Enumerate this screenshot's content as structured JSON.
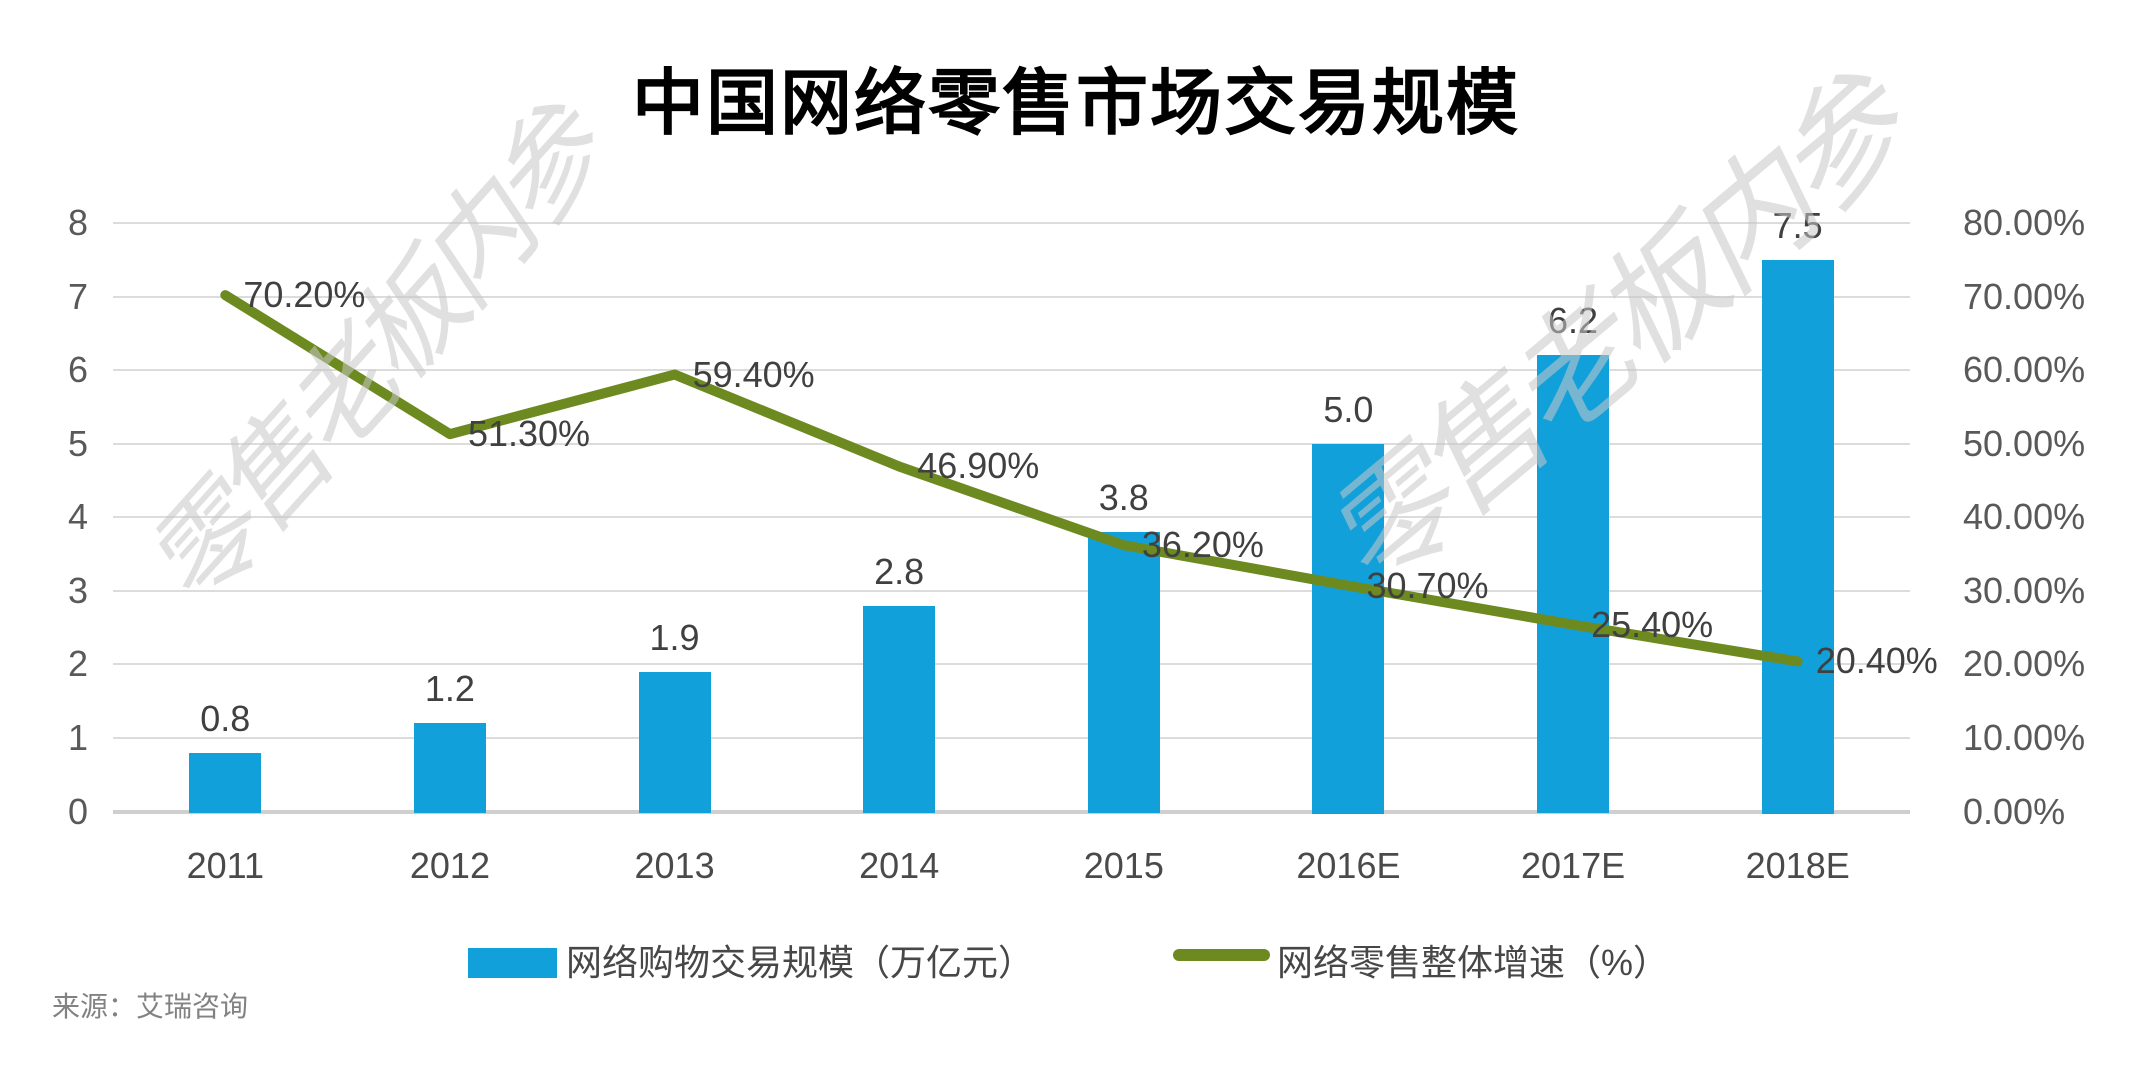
{
  "title": "中国网络零售市场交易规模",
  "watermark": {
    "text": "零售老板内参"
  },
  "source": "来源：艾瑞咨询",
  "legend": [
    {
      "label": "网络购物交易规模（万亿元）",
      "type": "bar"
    },
    {
      "label": "网络零售整体增速（%）",
      "type": "line"
    }
  ],
  "colors": {
    "bar": "#12A0DB",
    "line": "#6C8A1F",
    "grid": "#DCDCDC",
    "axis_text": "#595959",
    "data_label_text": "#404040",
    "watermark": "#C8C8C8",
    "source_text": "#828282"
  },
  "chart_data": {
    "type": "combo",
    "categories": [
      "2011",
      "2012",
      "2013",
      "2014",
      "2015",
      "2016E",
      "2017E",
      "2018E"
    ],
    "series": [
      {
        "name": "网络购物交易规模（万亿元）",
        "type": "bar",
        "axis": "left",
        "values": [
          0.8,
          1.2,
          1.9,
          2.8,
          3.8,
          5.0,
          6.2,
          7.5
        ],
        "labels": [
          "0.8",
          "1.2",
          "1.9",
          "2.8",
          "3.8",
          "5.0",
          "6.2",
          "7.5"
        ]
      },
      {
        "name": "网络零售整体增速（%）",
        "type": "line",
        "axis": "right",
        "values": [
          70.2,
          51.3,
          59.4,
          46.9,
          36.2,
          30.7,
          25.4,
          20.4
        ],
        "labels": [
          "70.20%",
          "51.30%",
          "59.40%",
          "46.90%",
          "36.20%",
          "30.70%",
          "25.40%",
          "20.40%"
        ]
      }
    ],
    "left_axis": {
      "min": 0,
      "max": 8,
      "step": 1,
      "ticks": [
        "8",
        "7",
        "6",
        "5",
        "4",
        "3",
        "2",
        "1",
        "0"
      ]
    },
    "right_axis": {
      "min": 0,
      "max": 80,
      "step": 10,
      "ticks": [
        "80.00%",
        "70.00%",
        "60.00%",
        "50.00%",
        "40.00%",
        "30.00%",
        "20.00%",
        "10.00%",
        "0.00%"
      ]
    },
    "grid": true,
    "legend_position": "bottom",
    "xlabel": "",
    "ylabel_left": "",
    "ylabel_right": ""
  }
}
